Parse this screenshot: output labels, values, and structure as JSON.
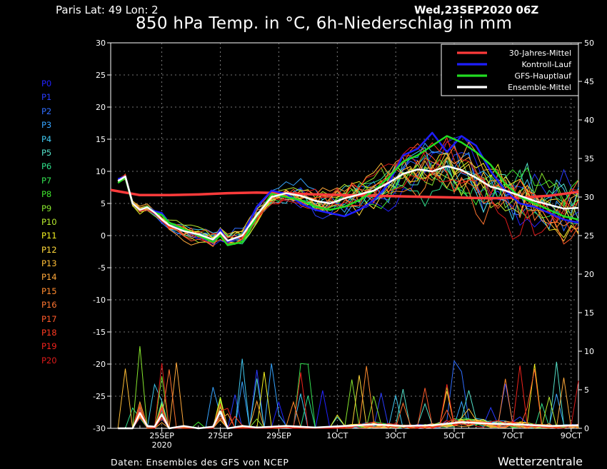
{
  "header": {
    "location": "Paris   Lat: 49 Lon: 2",
    "run": "Wed,23SEP2020 06Z",
    "title": "850 hPa Temp. in °C, 6h-Niederschlag in mm"
  },
  "footer": {
    "source": "Daten: Ensembles des GFS von NCEP",
    "brand": "Wetterzentrale"
  },
  "members": [
    {
      "label": "P0",
      "color": "#2222ff"
    },
    {
      "label": "P1",
      "color": "#2a3cff"
    },
    {
      "label": "P2",
      "color": "#2f6dff"
    },
    {
      "label": "P3",
      "color": "#36a4ff"
    },
    {
      "label": "P4",
      "color": "#40c8f0"
    },
    {
      "label": "P5",
      "color": "#52e0c8"
    },
    {
      "label": "P6",
      "color": "#2ee08a"
    },
    {
      "label": "P7",
      "color": "#33e04f"
    },
    {
      "label": "P8",
      "color": "#3ee62d"
    },
    {
      "label": "P9",
      "color": "#86e62d"
    },
    {
      "label": "P10",
      "color": "#b8ec2e"
    },
    {
      "label": "P11",
      "color": "#f2f020"
    },
    {
      "label": "P12",
      "color": "#ffd83a"
    },
    {
      "label": "P13",
      "color": "#ffbe36"
    },
    {
      "label": "P14",
      "color": "#ffa83a"
    },
    {
      "label": "P15",
      "color": "#ff8a2e"
    },
    {
      "label": "P16",
      "color": "#ff7530"
    },
    {
      "label": "P17",
      "color": "#ff5a2a"
    },
    {
      "label": "P18",
      "color": "#ff3a22"
    },
    {
      "label": "P19",
      "color": "#f2221c"
    },
    {
      "label": "P20",
      "color": "#dc1a1a"
    }
  ],
  "chart_data": {
    "type": "line",
    "grid": true,
    "legend_position": "top-right",
    "x_unit": "days after 23SEP2020 06Z",
    "xlim": [
      0,
      16
    ],
    "x_ticks": [
      {
        "x": 1.75,
        "label": "25SEP",
        "sub": "2020"
      },
      {
        "x": 3.75,
        "label": "27SEP",
        "sub": ""
      },
      {
        "x": 5.75,
        "label": "29SEP",
        "sub": ""
      },
      {
        "x": 7.75,
        "label": "1OCT",
        "sub": ""
      },
      {
        "x": 9.75,
        "label": "3OCT",
        "sub": ""
      },
      {
        "x": 11.75,
        "label": "5OCT",
        "sub": ""
      },
      {
        "x": 13.75,
        "label": "7OCT",
        "sub": ""
      },
      {
        "x": 15.75,
        "label": "9OCT",
        "sub": ""
      }
    ],
    "y_left": {
      "label": "",
      "min": -30,
      "max": 30,
      "ticks": [
        30,
        25,
        20,
        15,
        10,
        5,
        0,
        -5,
        -10,
        -15,
        -20,
        -25,
        -30
      ]
    },
    "y_right": {
      "label": "",
      "min": 0,
      "max": 50,
      "ticks": [
        50,
        45,
        40,
        35,
        30,
        25,
        20,
        15,
        10,
        5,
        0
      ]
    },
    "temperature_series": [
      {
        "name": "30-Jahres-Mittel",
        "color": "#ff3b3b",
        "width": 3.5,
        "x": [
          0,
          1,
          2,
          3,
          4,
          5,
          6,
          7,
          8,
          9,
          10,
          11,
          12,
          13,
          14,
          15,
          16
        ],
        "y": [
          7.1,
          6.3,
          6.3,
          6.4,
          6.6,
          6.7,
          6.6,
          6.4,
          6.3,
          6.2,
          6.1,
          6.0,
          5.9,
          5.8,
          5.9,
          6.2,
          6.8
        ]
      },
      {
        "name": "Kontroll-Lauf",
        "color": "#1e1eff",
        "width": 2.5,
        "x": [
          0.25,
          0.5,
          0.75,
          1,
          1.25,
          1.5,
          1.75,
          2,
          2.5,
          3,
          3.5,
          3.75,
          4,
          4.5,
          5,
          5.5,
          6,
          6.5,
          7,
          7.5,
          8,
          8.5,
          9,
          9.5,
          10,
          10.5,
          11,
          11.5,
          12,
          12.5,
          13,
          13.5,
          14,
          14.5,
          15,
          15.5,
          16
        ],
        "y": [
          8.8,
          9.2,
          5.0,
          4.0,
          4.5,
          3.8,
          3.5,
          2.0,
          0.8,
          0.0,
          -1.0,
          1.0,
          -1.0,
          0.0,
          4.5,
          7.0,
          6.5,
          5.0,
          4.0,
          3.5,
          3.0,
          4.0,
          5.5,
          8.0,
          12.5,
          13.5,
          16.0,
          13.0,
          15.5,
          14.0,
          10.0,
          7.0,
          5.0,
          4.5,
          3.5,
          2.5,
          2.0
        ]
      },
      {
        "name": "GFS-Hauptlauf",
        "color": "#22dd22",
        "width": 2.5,
        "x": [
          0.25,
          0.5,
          0.75,
          1,
          1.25,
          1.5,
          1.75,
          2,
          2.5,
          3,
          3.5,
          3.75,
          4,
          4.5,
          5,
          5.5,
          6,
          6.5,
          7,
          7.5,
          8,
          8.5,
          9,
          9.5,
          10,
          10.5,
          11,
          11.5,
          12,
          12.5,
          13,
          13.5,
          14,
          14.5,
          15,
          15.5,
          16
        ],
        "y": [
          8.2,
          9.0,
          5.0,
          4.0,
          4.5,
          3.6,
          3.2,
          2.0,
          1.0,
          0.0,
          -1.0,
          0.0,
          -1.5,
          -1.0,
          3.0,
          6.5,
          6.0,
          5.5,
          4.5,
          4.0,
          4.5,
          5.5,
          7.0,
          9.0,
          11.5,
          12.5,
          14.0,
          15.5,
          14.5,
          13.0,
          11.0,
          8.0,
          6.0,
          5.0,
          4.0,
          3.0,
          2.5
        ]
      },
      {
        "name": "Ensemble-Mittel",
        "color": "#ffffff",
        "width": 2.5,
        "x": [
          0.25,
          0.5,
          0.75,
          1,
          1.25,
          1.5,
          1.75,
          2,
          2.5,
          3,
          3.5,
          3.75,
          4,
          4.5,
          5,
          5.5,
          6,
          6.5,
          7,
          7.5,
          8,
          8.5,
          9,
          9.5,
          10,
          10.5,
          11,
          11.5,
          12,
          12.5,
          13,
          13.5,
          14,
          14.5,
          15,
          15.5,
          16
        ],
        "y": [
          8.5,
          9.2,
          5.0,
          4.0,
          4.4,
          3.6,
          2.5,
          1.6,
          0.7,
          0.2,
          -0.6,
          0.5,
          -0.8,
          0.0,
          3.2,
          6.0,
          6.6,
          6.2,
          5.4,
          5.0,
          5.8,
          6.4,
          7.0,
          8.2,
          9.6,
          10.3,
          10.0,
          10.8,
          10.2,
          9.0,
          7.6,
          7.0,
          6.2,
          5.4,
          4.8,
          4.2,
          4.3
        ]
      }
    ],
    "precipitation_series": [
      {
        "name": "Ensemble-Mittel",
        "color": "#ffffff",
        "width": 2.5,
        "x": [
          0.25,
          0.75,
          1,
          1.25,
          1.5,
          1.75,
          2,
          2.5,
          3,
          3.5,
          3.75,
          4,
          4.5,
          5,
          6,
          7,
          8,
          9,
          10,
          11,
          12,
          13,
          14,
          15,
          16
        ],
        "y": [
          0,
          0,
          2.0,
          0.3,
          0.2,
          1.8,
          0,
          0.3,
          0,
          0.2,
          2.2,
          0,
          0.3,
          0.1,
          0.3,
          0.1,
          0.3,
          0.5,
          0.3,
          0.4,
          0.8,
          0.6,
          0.5,
          0.3,
          0.4
        ]
      }
    ]
  }
}
